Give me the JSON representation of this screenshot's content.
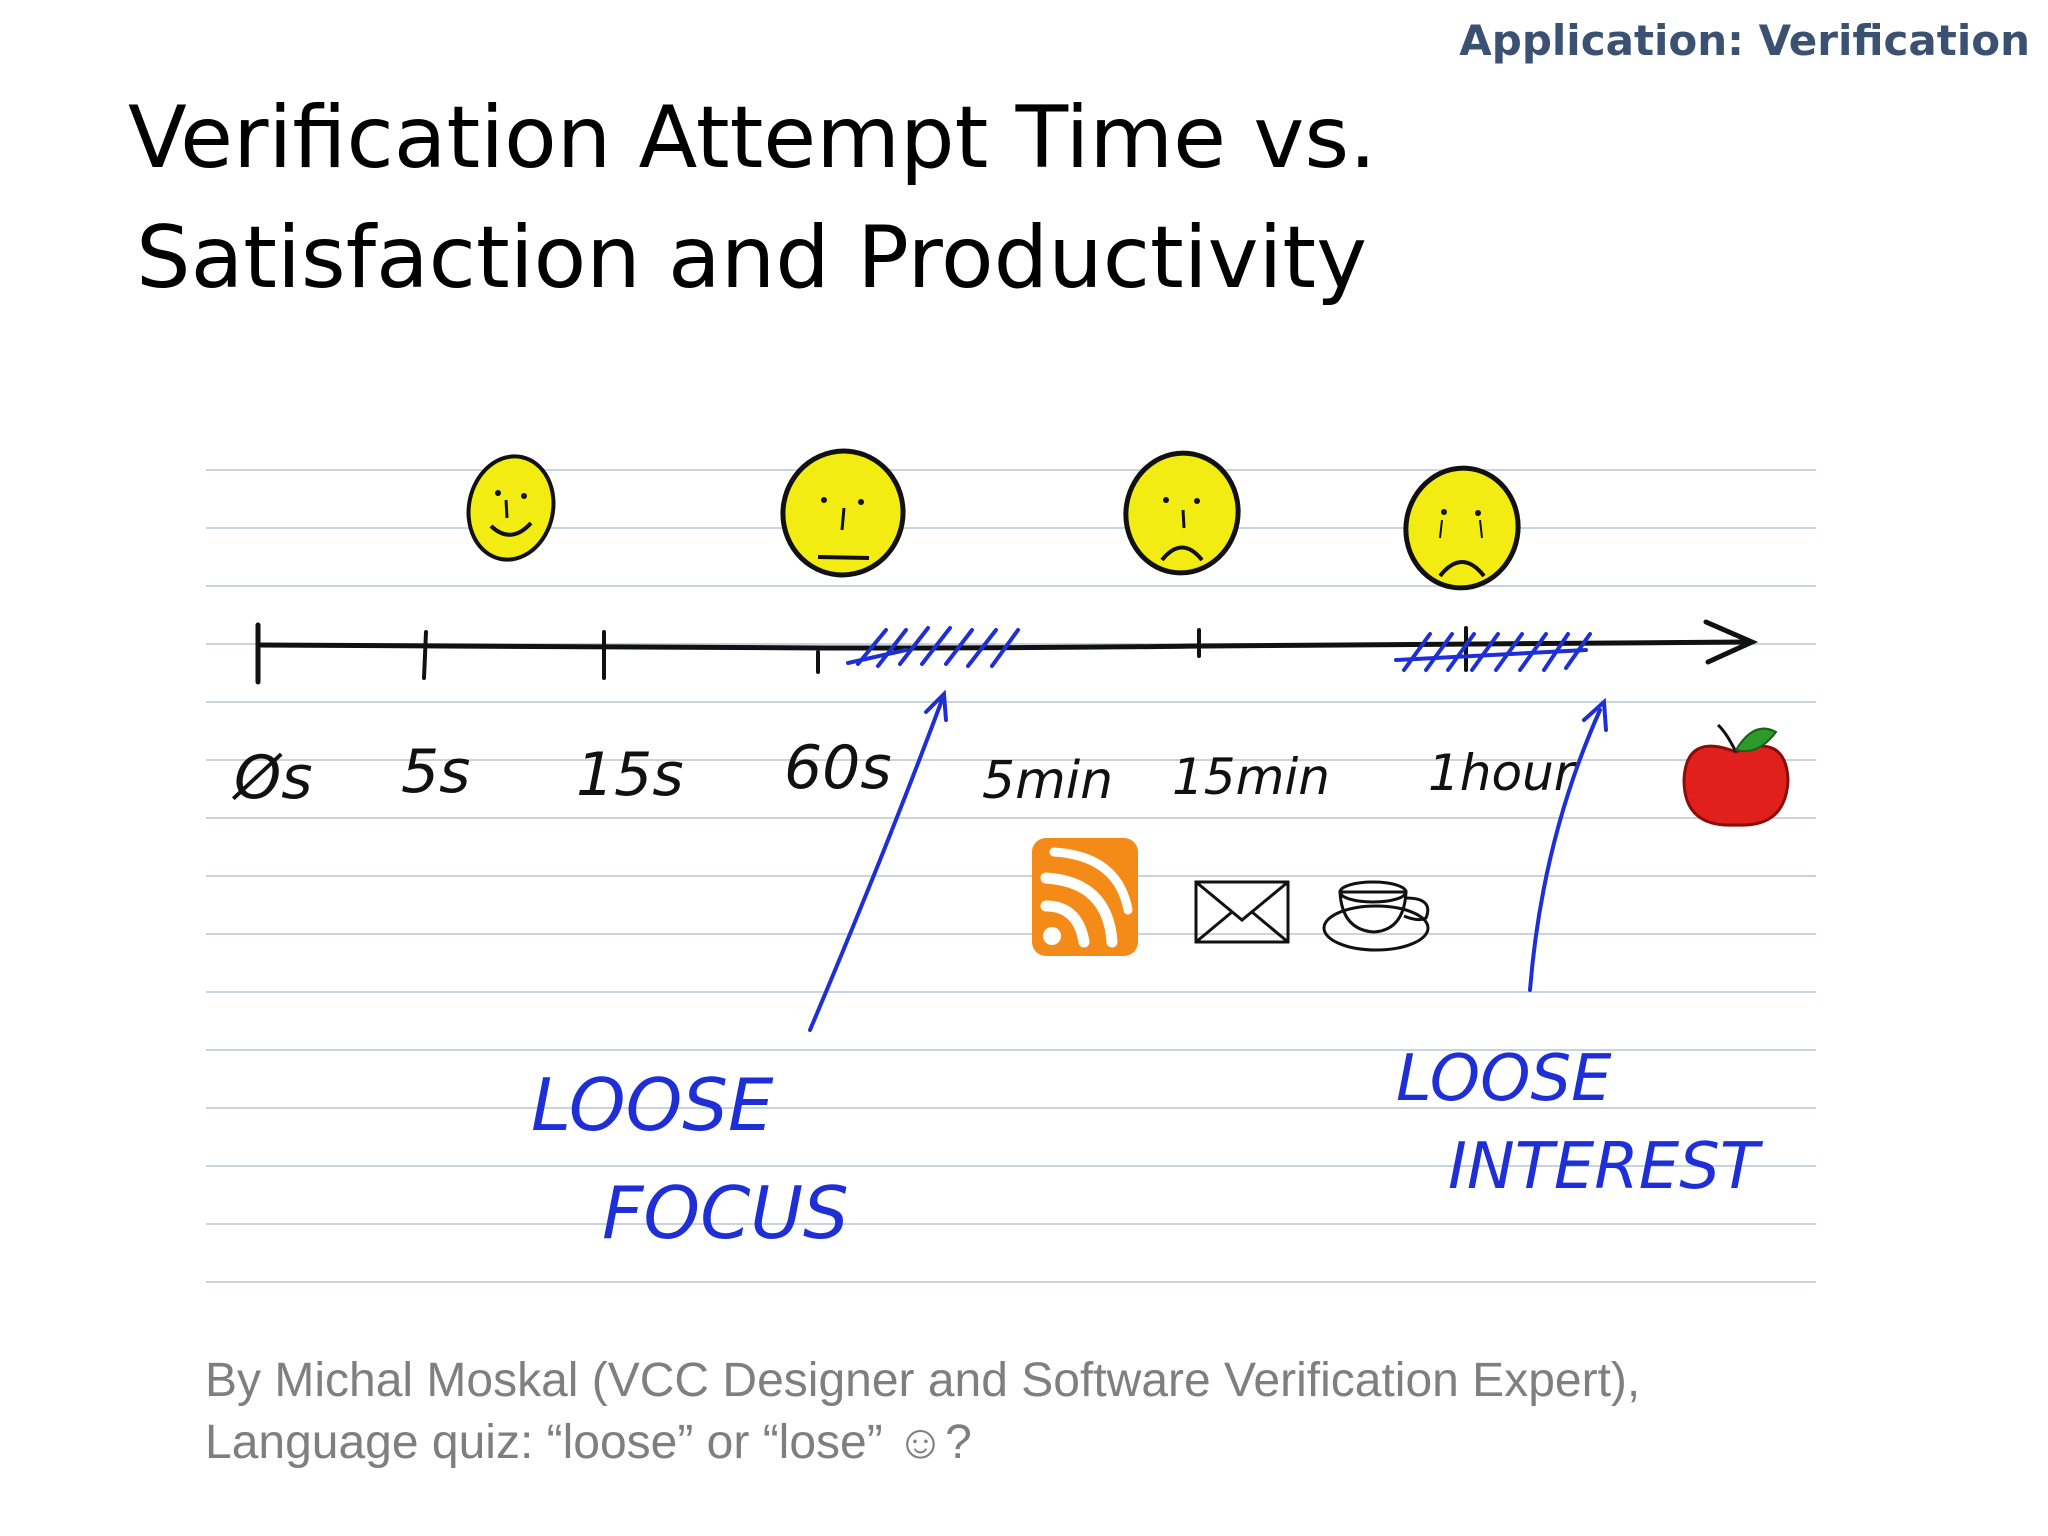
{
  "section_tag": "Application: Verification",
  "title": {
    "line1": "Verification Attempt Time vs.",
    "line2": "Satisfaction and Productivity"
  },
  "timeline": {
    "ticks": [
      "Øs",
      "5s",
      "15s",
      "60s",
      "5min",
      "15min",
      "1hour"
    ],
    "faces": [
      {
        "at": "5s",
        "mood": "happy"
      },
      {
        "at": "60s",
        "mood": "neutral"
      },
      {
        "at": "15min",
        "mood": "sad"
      },
      {
        "at": "1hour",
        "mood": "crying"
      }
    ],
    "distractions": [
      "rss-icon",
      "envelope-icon",
      "coffee-cup-icon"
    ],
    "end_icon": "apple-icon",
    "annotations": [
      {
        "line1": "LOOSE",
        "line2": "FOCUS"
      },
      {
        "line1": "LOOSE",
        "line2": "INTEREST"
      }
    ],
    "colors": {
      "ink": "#111111",
      "annotation": "#1f2fd6",
      "face": "#f2ec12",
      "rss": "#f48a18",
      "apple": "#e0201c",
      "paper_rule": "#c8d4e0"
    }
  },
  "caption": {
    "line1": "By Michal Moskal (VCC Designer and Software Verification Expert),",
    "line2": "Language quiz: “loose” or “lose” ☺?"
  }
}
